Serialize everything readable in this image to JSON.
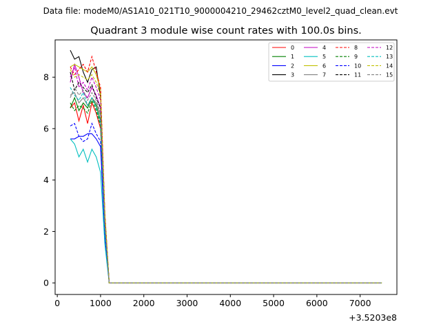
{
  "suptitle": "Data file: modeM0/AS1A10_021T10_9000004210_29462cztM0_level2_quad_clean.evt",
  "chart_data": {
    "type": "line",
    "title": "Quadrant 3 module wise count rates with 100.0s bins.",
    "offset_label": "+3.5203e8",
    "xlim": [
      -50,
      7850
    ],
    "ylim": [
      -0.45,
      9.45
    ],
    "xticks": [
      0,
      1000,
      2000,
      3000,
      4000,
      5000,
      6000,
      7000
    ],
    "yticks": [
      0,
      2,
      4,
      6,
      8
    ],
    "x": [
      300,
      400,
      500,
      600,
      700,
      800,
      900,
      1000,
      1100,
      1200
    ],
    "x_end": 7500,
    "legend_position": "upper-right",
    "legend_columns": 4,
    "series": [
      {
        "name": "0",
        "color": "#ff0000",
        "dash": "solid",
        "values": [
          6.8,
          7.0,
          6.3,
          6.9,
          6.2,
          7.0,
          6.6,
          6.0,
          2.0,
          0.0
        ]
      },
      {
        "name": "1",
        "color": "#008000",
        "dash": "solid",
        "values": [
          6.8,
          7.2,
          6.7,
          7.0,
          6.8,
          7.2,
          6.9,
          6.3,
          2.1,
          0.0
        ]
      },
      {
        "name": "2",
        "color": "#0000ff",
        "dash": "solid",
        "values": [
          5.6,
          5.6,
          5.7,
          5.7,
          5.8,
          5.8,
          5.6,
          5.3,
          1.8,
          0.0
        ]
      },
      {
        "name": "3",
        "color": "#000000",
        "dash": "solid",
        "values": [
          9.05,
          8.7,
          8.8,
          8.2,
          7.8,
          8.3,
          8.4,
          7.2,
          2.6,
          0.0
        ]
      },
      {
        "name": "4",
        "color": "#c000c0",
        "dash": "solid",
        "values": [
          7.8,
          8.5,
          8.0,
          7.4,
          7.2,
          7.6,
          7.3,
          6.8,
          2.3,
          0.0
        ]
      },
      {
        "name": "5",
        "color": "#00bfbf",
        "dash": "solid",
        "values": [
          5.6,
          5.4,
          4.9,
          5.2,
          4.7,
          5.2,
          4.9,
          4.3,
          1.5,
          0.0
        ]
      },
      {
        "name": "6",
        "color": "#bfbf00",
        "dash": "solid",
        "values": [
          8.4,
          8.5,
          8.4,
          8.3,
          8.2,
          8.4,
          8.1,
          7.5,
          2.7,
          0.0
        ]
      },
      {
        "name": "7",
        "color": "#808080",
        "dash": "solid",
        "values": [
          7.3,
          7.4,
          7.0,
          7.2,
          6.9,
          7.2,
          7.0,
          6.5,
          2.2,
          0.0
        ]
      },
      {
        "name": "8",
        "color": "#ff0000",
        "dash": "dashed",
        "values": [
          8.4,
          8.1,
          8.3,
          8.5,
          8.2,
          8.8,
          8.2,
          7.6,
          2.7,
          0.0
        ]
      },
      {
        "name": "9",
        "color": "#008000",
        "dash": "dashed",
        "values": [
          7.0,
          6.7,
          6.9,
          6.8,
          6.6,
          7.1,
          6.7,
          6.1,
          2.1,
          0.0
        ]
      },
      {
        "name": "10",
        "color": "#0000ff",
        "dash": "dashed",
        "values": [
          6.1,
          6.2,
          5.7,
          5.5,
          5.6,
          6.2,
          5.8,
          5.5,
          1.9,
          0.0
        ]
      },
      {
        "name": "11",
        "color": "#000000",
        "dash": "dashed",
        "values": [
          8.2,
          7.5,
          7.8,
          7.6,
          7.4,
          7.7,
          7.2,
          6.8,
          2.4,
          0.0
        ]
      },
      {
        "name": "12",
        "color": "#c000c0",
        "dash": "dashed",
        "values": [
          8.0,
          8.4,
          7.6,
          7.8,
          7.5,
          8.0,
          7.6,
          7.1,
          2.4,
          0.0
        ]
      },
      {
        "name": "13",
        "color": "#00bfbf",
        "dash": "dashed",
        "values": [
          7.6,
          7.3,
          7.1,
          7.4,
          6.9,
          7.2,
          6.8,
          6.2,
          2.1,
          0.0
        ]
      },
      {
        "name": "14",
        "color": "#bfbf00",
        "dash": "dashed",
        "values": [
          8.3,
          8.0,
          8.1,
          8.0,
          7.9,
          8.1,
          7.8,
          7.3,
          2.6,
          0.0
        ]
      },
      {
        "name": "15",
        "color": "#808080",
        "dash": "dashed",
        "values": [
          7.2,
          7.6,
          7.3,
          7.5,
          7.1,
          7.4,
          7.1,
          6.6,
          2.3,
          0.0
        ]
      }
    ]
  }
}
